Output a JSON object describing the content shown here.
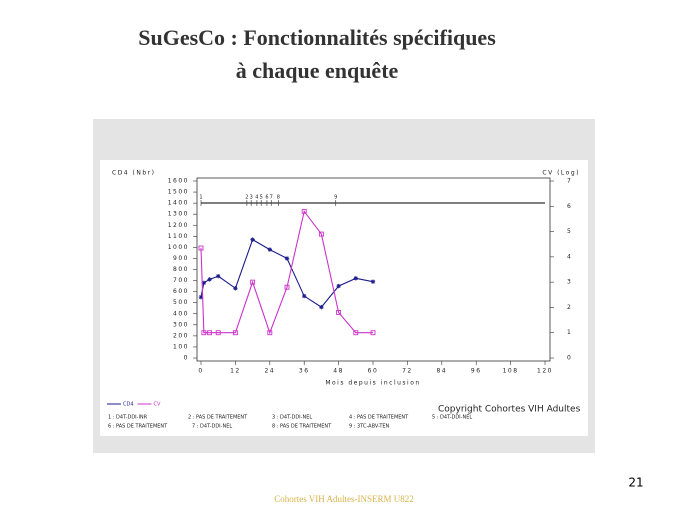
{
  "slide": {
    "title": [
      "SuGesCo : Fonctionnalités spécifiques",
      "à chaque enquête"
    ],
    "footer": "Cohortes VIH Adultes-INSERM U822",
    "page_number": "21"
  },
  "chart_data": {
    "type": "line",
    "ylabel": "CD4 (Nbr)",
    "y2label": "CV (Log)",
    "xlabel": "Mois depuis inclusion",
    "xlim": [
      0,
      120
    ],
    "xticks": [
      0,
      12,
      24,
      36,
      48,
      60,
      72,
      84,
      96,
      108,
      120
    ],
    "ylim": [
      0,
      1600
    ],
    "yticks": [
      0,
      100,
      200,
      300,
      400,
      500,
      600,
      700,
      800,
      900,
      1000,
      1100,
      1200,
      1300,
      1400,
      1500,
      1600
    ],
    "y2lim": [
      0,
      7
    ],
    "y2ticks": [
      0,
      1,
      2,
      3,
      4,
      5,
      6,
      7
    ],
    "x": [
      0,
      1,
      3,
      6,
      12,
      18,
      24,
      30,
      36,
      42,
      48,
      54,
      60
    ],
    "series": [
      {
        "name": "CD4",
        "color": "#1c1c8c",
        "marker": "star",
        "values": [
          550,
          680,
          710,
          740,
          630,
          1070,
          980,
          900,
          560,
          460,
          650,
          720,
          690
        ]
      },
      {
        "name": "CV",
        "color": "#cc33cc",
        "marker": "square",
        "axis": "y2",
        "values": [
          4.35,
          1.0,
          1.0,
          1.0,
          1.0,
          3.0,
          1.0,
          2.8,
          5.8,
          4.9,
          1.8,
          1.0,
          1.0
        ]
      }
    ],
    "events": [
      {
        "x": 0,
        "label": "1"
      },
      {
        "x": 16,
        "label": "2"
      },
      {
        "x": 17.5,
        "label": "3"
      },
      {
        "x": 19.5,
        "label": "4"
      },
      {
        "x": 21,
        "label": "5"
      },
      {
        "x": 23,
        "label": "6"
      },
      {
        "x": 24.5,
        "label": "7"
      },
      {
        "x": 27,
        "label": "8"
      },
      {
        "x": 47,
        "label": "9"
      }
    ],
    "treatments": [
      "1 : D4T-DDI-INR",
      "2 : PAS DE TRAITEMENT",
      "3 : D4T-DDI-NEL",
      "4 : PAS DE TRAITEMENT",
      "5 : D4T-DDI-NEL",
      "6 : PAS DE TRAITEMENT",
      "7 : D4T-DDI-NEL",
      "8 : PAS DE TRAITEMENT",
      "9 : 3TC-ABV-TEN"
    ],
    "copyright": "Copyright Cohortes VIH Adultes"
  }
}
